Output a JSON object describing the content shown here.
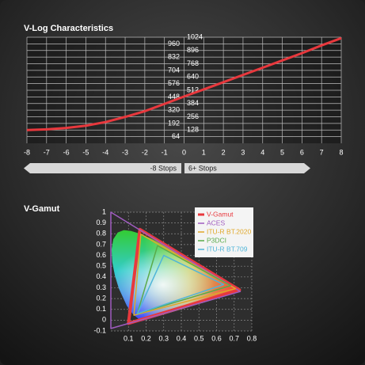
{
  "chart_data": [
    {
      "type": "line",
      "title": "V-Log Characteristics",
      "x": [
        -8,
        -7,
        -6,
        -5,
        -4,
        -3,
        -2,
        -1,
        0,
        1,
        2,
        3,
        4,
        5,
        6,
        7,
        8
      ],
      "series": [
        {
          "color": "#e8383d",
          "values": [
            128,
            135,
            148,
            170,
            205,
            255,
            310,
            380,
            452,
            520,
            590,
            660,
            730,
            800,
            870,
            945,
            1015
          ]
        }
      ],
      "xlim": [
        -8,
        8
      ],
      "xticks": [
        -8,
        -7,
        -6,
        -5,
        -4,
        -3,
        -2,
        -1,
        0,
        1,
        2,
        3,
        4,
        5,
        6,
        7,
        8
      ],
      "ylim": [
        0,
        1024
      ],
      "yticks": [
        64,
        192,
        320,
        448,
        576,
        704,
        832,
        960
      ],
      "y2lim": [
        0,
        1024
      ],
      "y2ticks": [
        128,
        256,
        384,
        512,
        640,
        768,
        896,
        1024
      ],
      "grid": true,
      "annotations": [
        "-8 Stops",
        "6+ Stops"
      ]
    },
    {
      "type": "polygon",
      "title": "V-Gamut",
      "series": [
        {
          "name": "V-Gamut",
          "color": "#e8383d",
          "x": [
            0.73,
            0.165,
            0.1
          ],
          "y": [
            0.28,
            0.84,
            -0.03
          ]
        },
        {
          "name": "ACES",
          "color": "#a05cc0",
          "x": [
            0.7347,
            0.0,
            0.0001
          ],
          "y": [
            0.2653,
            1.0,
            -0.077
          ]
        },
        {
          "name": "ITU-R BT.2020",
          "color": "#e0a82a",
          "x": [
            0.708,
            0.17,
            0.131
          ],
          "y": [
            0.292,
            0.797,
            0.046
          ]
        },
        {
          "name": "P3DCI",
          "color": "#5aab4a",
          "x": [
            0.68,
            0.265,
            0.15
          ],
          "y": [
            0.32,
            0.69,
            0.06
          ]
        },
        {
          "name": "ITU-R BT.709",
          "color": "#4fb5d8",
          "x": [
            0.64,
            0.3,
            0.15
          ],
          "y": [
            0.33,
            0.6,
            0.06
          ]
        }
      ],
      "xlim": [
        0,
        0.8
      ],
      "xticks": [
        0.1,
        0.2,
        0.3,
        0.4,
        0.5,
        0.6,
        0.7,
        0.8
      ],
      "ylim": [
        -0.1,
        1
      ],
      "yticks": [
        -0.1,
        0,
        0.1,
        0.2,
        0.3,
        0.4,
        0.5,
        0.6,
        0.7,
        0.8,
        0.9,
        1
      ],
      "grid": true,
      "legend": "upper right"
    }
  ]
}
